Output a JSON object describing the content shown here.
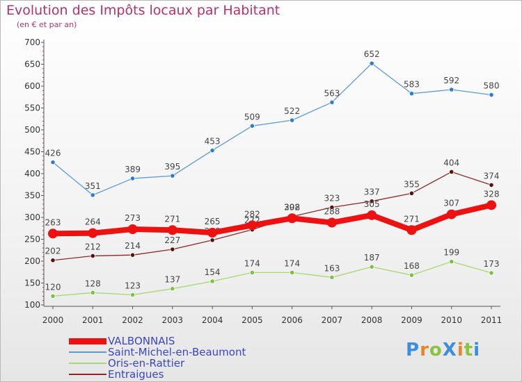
{
  "header": {
    "title": "Evolution des Impôts locaux par Habitant",
    "subtitle": "(en € et par an)"
  },
  "colors": {
    "title": "#b0336b",
    "legend_text": "#3a46c0",
    "axis": "#555555",
    "tick_label": "#333333",
    "value_label": "#444444"
  },
  "logo": {
    "text": "ProXiti",
    "letter_colors": [
      "#3b8ede",
      "#e8842c",
      "#8ac43e",
      "#3b8ede",
      "#e8842c",
      "#8ac43e",
      "#3b8ede"
    ]
  },
  "chart_data": {
    "type": "line",
    "x": [
      "2000",
      "2001",
      "2002",
      "2003",
      "2004",
      "2005",
      "2006",
      "2007",
      "2008",
      "2009",
      "2010",
      "2011"
    ],
    "ylim": [
      100,
      700
    ],
    "yticks": [
      100,
      150,
      200,
      250,
      300,
      350,
      400,
      450,
      500,
      550,
      600,
      650,
      700
    ],
    "grid": false,
    "legend_position": "bottom-left",
    "series": [
      {
        "name": "Saint-Michel-en-Beaumont",
        "color": "#5b9bd5",
        "marker_color": "#2d7dd2",
        "values": [
          426,
          351,
          389,
          395,
          453,
          509,
          522,
          563,
          652,
          583,
          592,
          580
        ],
        "emphasis": false
      },
      {
        "name": "Entraigues",
        "color": "#8b2a2a",
        "marker_color": "#5a1010",
        "values": [
          202,
          212,
          214,
          227,
          248,
          272,
          302,
          323,
          337,
          355,
          404,
          374
        ],
        "emphasis": false
      },
      {
        "name": "Oris-en-Rattier",
        "color": "#a6d96a",
        "marker_color": "#7dc142",
        "values": [
          120,
          128,
          123,
          137,
          154,
          174,
          174,
          163,
          187,
          168,
          199,
          173
        ],
        "emphasis": false
      },
      {
        "name": "VALBONNAIS",
        "color": "#ee1111",
        "marker_color": "#ee1111",
        "values": [
          263,
          264,
          273,
          271,
          265,
          282,
          298,
          288,
          305,
          271,
          307,
          328
        ],
        "emphasis": true
      }
    ],
    "legend_order": [
      "VALBONNAIS",
      "Saint-Michel-en-Beaumont",
      "Oris-en-Rattier",
      "Entraigues"
    ]
  }
}
